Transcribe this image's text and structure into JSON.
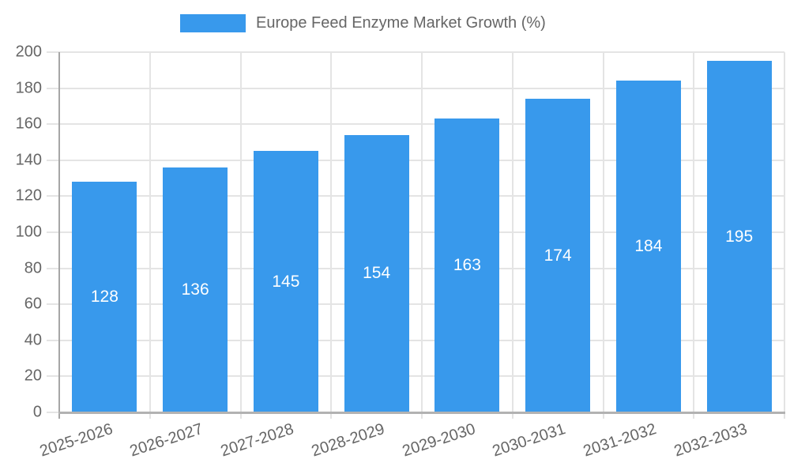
{
  "legend": {
    "label": "Europe Feed Enzyme Market Growth (%)",
    "swatch_color": "#3899ec"
  },
  "chart_data": {
    "type": "bar",
    "title": "Europe Feed Enzyme Market Growth (%)",
    "categories": [
      "2025-2026",
      "2026-2027",
      "2027-2028",
      "2028-2029",
      "2029-2030",
      "2030-2031",
      "2031-2032",
      "2032-2033"
    ],
    "values": [
      128,
      136,
      145,
      154,
      163,
      174,
      184,
      195
    ],
    "xlabel": "",
    "ylabel": "",
    "ylim": [
      0,
      200
    ],
    "ytick_step": 20,
    "ytick_labels": [
      "0",
      "20",
      "40",
      "60",
      "80",
      "100",
      "120",
      "140",
      "160",
      "180",
      "200"
    ],
    "grid": true,
    "legend_position": "top",
    "bar_color": "#3899ec",
    "bar_label_color": "#ffffff",
    "axis_text_color": "#666666",
    "grid_color": "#e4e4e4",
    "y_axis_line_color": "#a6a6a6",
    "x_axis_line_color": "#b2b2b2"
  }
}
